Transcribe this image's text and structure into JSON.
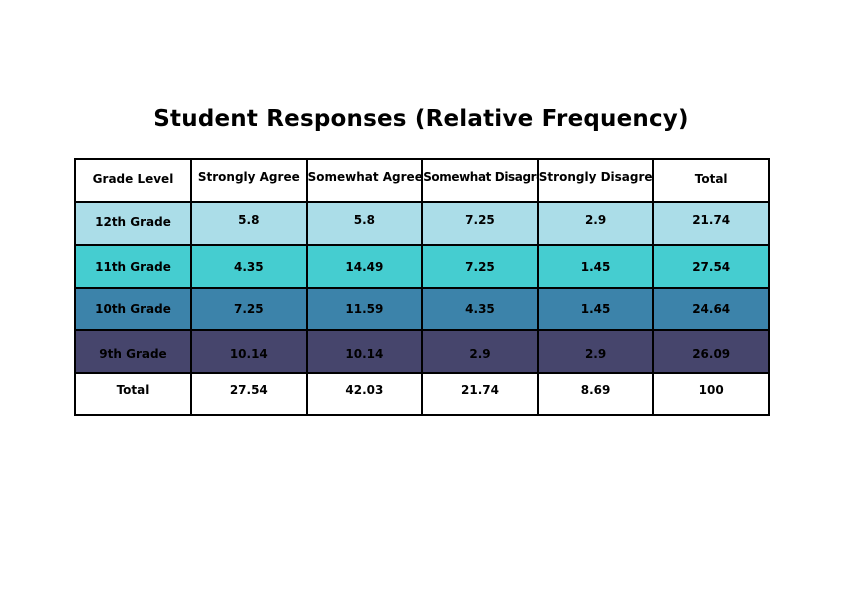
{
  "chart_data": {
    "type": "table",
    "title": "Student Responses (Relative Frequency)",
    "columns": [
      "Grade Level",
      "Strongly Agree",
      "Somewhat Agree",
      "Somewhat Disagree",
      "Strongly Disagree",
      "Total"
    ],
    "rows": [
      {
        "label": "12th Grade",
        "values": [
          "5.8",
          "5.8",
          "7.25",
          "2.9",
          "21.74"
        ],
        "color": "#ABDDE8"
      },
      {
        "label": "11th Grade",
        "values": [
          "4.35",
          "14.49",
          "7.25",
          "1.45",
          "27.54"
        ],
        "color": "#45CDD0"
      },
      {
        "label": "10th Grade",
        "values": [
          "7.25",
          "11.59",
          "4.35",
          "1.45",
          "24.64"
        ],
        "color": "#3C83AA"
      },
      {
        "label": "9th Grade",
        "values": [
          "10.14",
          "10.14",
          "2.9",
          "2.9",
          "26.09"
        ],
        "color": "#46456C"
      },
      {
        "label": "Total",
        "values": [
          "27.54",
          "42.03",
          "21.74",
          "8.69",
          "100"
        ],
        "color": "#FFFFFF"
      }
    ]
  }
}
